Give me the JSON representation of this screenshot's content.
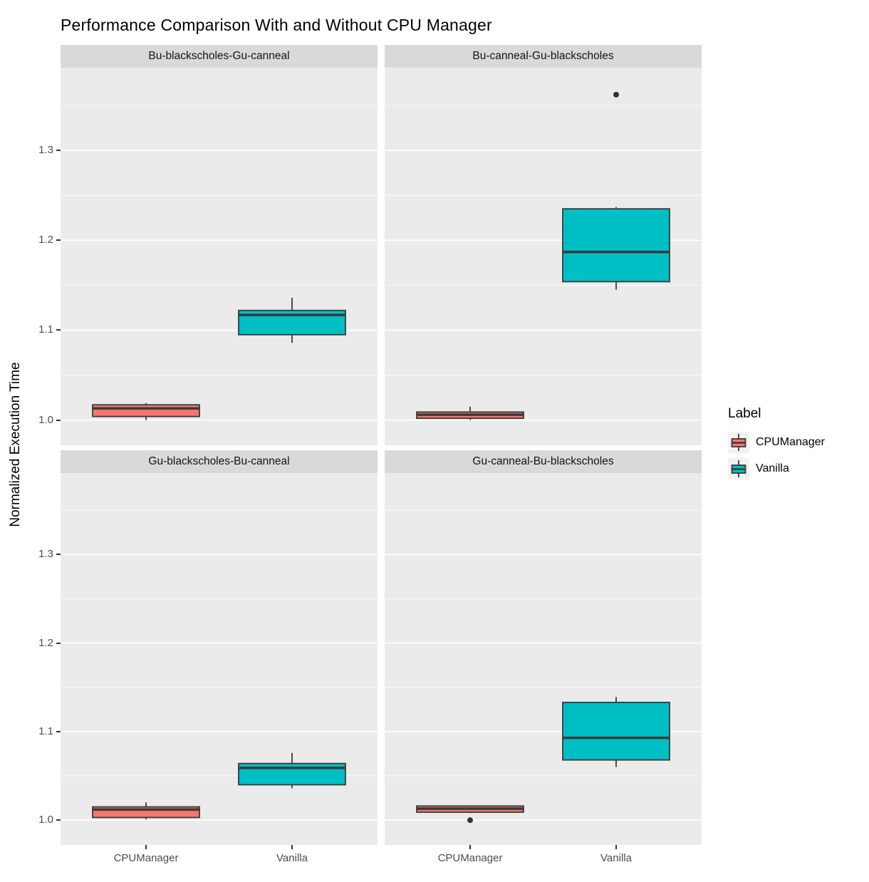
{
  "chart_data": {
    "type": "boxplot",
    "title": "Performance Comparison With and Without CPU Manager",
    "ylabel": "Normalized Execution Time",
    "x_categories": [
      "CPUManager",
      "Vanilla"
    ],
    "y_ticks": [
      1.0,
      1.1,
      1.2,
      1.3
    ],
    "y_minor_ticks": [
      1.05,
      1.15,
      1.25,
      1.35
    ],
    "y_domain": [
      0.972,
      1.392
    ],
    "grid": true,
    "legend": {
      "title": "Label",
      "position": "right",
      "entries": [
        {
          "label": "CPUManager",
          "color": "#F8766D"
        },
        {
          "label": "Vanilla",
          "color": "#00BFC4"
        }
      ]
    },
    "colors": {
      "panel_background": "#EBEBEB",
      "strip_background": "#D9D9D9",
      "gridline": "#FFFFFF",
      "box_outline": "#3A3A3A",
      "outlier": "#333333",
      "tick_text": "#4D4D4D"
    },
    "facets": [
      {
        "title": "Bu-blackscholes-Gu-canneal",
        "boxes": [
          {
            "group": "CPUManager",
            "low": 1.0,
            "q1": 1.004,
            "median": 1.013,
            "q3": 1.017,
            "high": 1.019,
            "outliers": []
          },
          {
            "group": "Vanilla",
            "low": 1.086,
            "q1": 1.095,
            "median": 1.117,
            "q3": 1.122,
            "high": 1.136,
            "outliers": []
          }
        ]
      },
      {
        "title": "Bu-canneal-Gu-blackscholes",
        "boxes": [
          {
            "group": "CPUManager",
            "low": 1.0,
            "q1": 1.002,
            "median": 1.006,
            "q3": 1.009,
            "high": 1.015,
            "outliers": []
          },
          {
            "group": "Vanilla",
            "low": 1.145,
            "q1": 1.154,
            "median": 1.187,
            "q3": 1.235,
            "high": 1.237,
            "outliers": [
              1.362
            ]
          }
        ]
      },
      {
        "title": "Gu-blackscholes-Bu-canneal",
        "boxes": [
          {
            "group": "CPUManager",
            "low": 1.001,
            "q1": 1.003,
            "median": 1.012,
            "q3": 1.015,
            "high": 1.02,
            "outliers": []
          },
          {
            "group": "Vanilla",
            "low": 1.036,
            "q1": 1.04,
            "median": 1.059,
            "q3": 1.064,
            "high": 1.076,
            "outliers": []
          }
        ]
      },
      {
        "title": "Gu-canneal-Bu-blackscholes",
        "boxes": [
          {
            "group": "CPUManager",
            "low": 1.008,
            "q1": 1.009,
            "median": 1.013,
            "q3": 1.016,
            "high": 1.016,
            "outliers": [
              1.0
            ]
          },
          {
            "group": "Vanilla",
            "low": 1.06,
            "q1": 1.068,
            "median": 1.093,
            "q3": 1.133,
            "high": 1.139,
            "outliers": []
          }
        ]
      }
    ]
  }
}
